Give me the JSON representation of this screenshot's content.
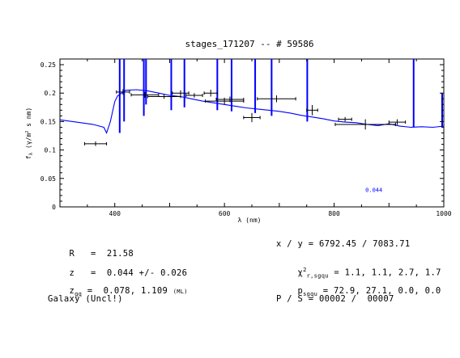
{
  "chart_data": {
    "type": "line",
    "title": "stages_171207 -- # 59586",
    "xlabel": "λ (nm)",
    "ylabel": "f_λ (γ/m² s nm)",
    "ylabel_main": "f",
    "ylabel_sub": "λ",
    "ylabel_rest": " (γ/m",
    "ylabel_sup": "2",
    "ylabel_end": " s nm)",
    "xlim": [
      300,
      1000
    ],
    "ylim": [
      0,
      0.26
    ],
    "xticks": [
      400,
      600,
      800,
      1000
    ],
    "yticks": [
      0,
      0.05,
      0.1,
      0.15,
      0.2,
      0.25
    ],
    "ytick_labels": [
      "0",
      "0.05",
      "0.1",
      "0.15",
      "0.2",
      "0.25"
    ],
    "redshift_label": "0.044",
    "redshift_label_pos": {
      "x": 857,
      "y": 0.026
    },
    "series": [
      {
        "color": "#0000ff",
        "x": [
          300,
          330,
          360,
          380,
          385,
          392,
          400,
          405,
          420,
          440,
          460,
          480,
          500,
          520,
          540,
          560,
          580,
          600,
          620,
          640,
          660,
          680,
          700,
          720,
          740,
          760,
          780,
          800,
          820,
          840,
          860,
          880,
          900,
          920,
          940,
          960,
          980,
          1000
        ],
        "y": [
          0.153,
          0.149,
          0.145,
          0.14,
          0.13,
          0.15,
          0.185,
          0.195,
          0.205,
          0.206,
          0.204,
          0.2,
          0.196,
          0.194,
          0.19,
          0.186,
          0.183,
          0.18,
          0.177,
          0.174,
          0.172,
          0.17,
          0.168,
          0.165,
          0.161,
          0.158,
          0.155,
          0.151,
          0.149,
          0.148,
          0.145,
          0.143,
          0.146,
          0.142,
          0.14,
          0.141,
          0.14,
          0.142
        ],
        "spikes": [
          {
            "x": 409,
            "low": 0.13,
            "high": 0.26
          },
          {
            "x": 417,
            "low": 0.15,
            "high": 0.26
          },
          {
            "x": 453,
            "low": 0.16,
            "high": 0.26
          },
          {
            "x": 457,
            "low": 0.18,
            "high": 0.26
          },
          {
            "x": 503,
            "low": 0.17,
            "high": 0.26
          },
          {
            "x": 527,
            "low": 0.175,
            "high": 0.26
          },
          {
            "x": 587,
            "low": 0.17,
            "high": 0.26
          },
          {
            "x": 613,
            "low": 0.168,
            "high": 0.26
          },
          {
            "x": 656,
            "low": 0.165,
            "high": 0.26
          },
          {
            "x": 686,
            "low": 0.16,
            "high": 0.26
          },
          {
            "x": 751,
            "low": 0.15,
            "high": 0.26
          },
          {
            "x": 945,
            "low": 0.14,
            "high": 0.26
          },
          {
            "x": 997,
            "low": 0.14,
            "high": 0.2
          }
        ]
      }
    ],
    "photometry": [
      {
        "x": 365,
        "y": 0.111,
        "xerr": 20,
        "yerr": 0.004
      },
      {
        "x": 415,
        "y": 0.202,
        "xerr": 12,
        "yerr": 0.005
      },
      {
        "x": 455,
        "y": 0.197,
        "xerr": 25,
        "yerr": 0.005
      },
      {
        "x": 490,
        "y": 0.194,
        "xerr": 30,
        "yerr": 0.004
      },
      {
        "x": 520,
        "y": 0.2,
        "xerr": 15,
        "yerr": 0.005
      },
      {
        "x": 545,
        "y": 0.196,
        "xerr": 15,
        "yerr": 0.004
      },
      {
        "x": 575,
        "y": 0.2,
        "xerr": 12,
        "yerr": 0.006
      },
      {
        "x": 600,
        "y": 0.186,
        "xerr": 35,
        "yerr": 0.006
      },
      {
        "x": 610,
        "y": 0.189,
        "xerr": 25,
        "yerr": 0.005
      },
      {
        "x": 650,
        "y": 0.157,
        "xerr": 15,
        "yerr": 0.008
      },
      {
        "x": 695,
        "y": 0.19,
        "xerr": 35,
        "yerr": 0.006
      },
      {
        "x": 760,
        "y": 0.17,
        "xerr": 10,
        "yerr": 0.009
      },
      {
        "x": 820,
        "y": 0.154,
        "xerr": 12,
        "yerr": 0.004
      },
      {
        "x": 857,
        "y": 0.145,
        "xerr": 55,
        "yerr": 0.009
      },
      {
        "x": 915,
        "y": 0.149,
        "xerr": 15,
        "yerr": 0.005
      }
    ]
  },
  "info": {
    "r_label": "R",
    "r_value": "=  21.58",
    "z_label": "z",
    "z_value": "=  0.044 +/- 0.026",
    "zgq_label": "z",
    "zgq_sub": "gq",
    "zgq_value": " =  0.078, 1.109",
    "zgq_note": "(ML)",
    "class_text": "Galaxy (Uncl!)",
    "xy_text": "x / y = 6792.45 / 7083.71",
    "chi_label": "χ",
    "chi_sup": "2",
    "chi_sub": "r,sgqu",
    "chi_value": " = 1.1, 1.1, 2.7, 1.7",
    "p_label": "p",
    "p_sub": "sgqu",
    "p_value": " = 72.9, 27.1, 0.0, 0.0",
    "ps_text": "P / S = 00002 /  00007"
  }
}
